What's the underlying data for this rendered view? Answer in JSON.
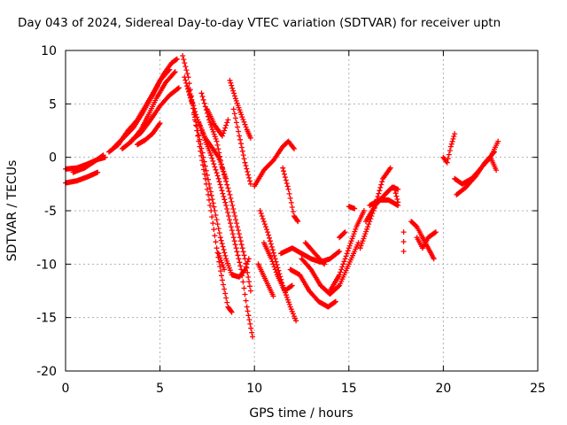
{
  "chart_data": {
    "type": "scatter",
    "title": "Day 043 of 2024, Sidereal Day-to-day VTEC variation (SDTVAR) for receiver uptn",
    "xlabel": "GPS time / hours",
    "ylabel": "SDTVAR / TECUs",
    "xlim": [
      0,
      25
    ],
    "ylim": [
      -20,
      10
    ],
    "xticks": [
      "0",
      "5",
      "10",
      "15",
      "20",
      "25"
    ],
    "yticks": [
      "10",
      "5",
      "0",
      "-5",
      "-10",
      "-15",
      "-20"
    ],
    "grid": true,
    "marker": "+",
    "color": "#ff0000",
    "tracks": [
      [
        [
          0.0,
          -1.1
        ],
        [
          0.6,
          -1.0
        ],
        [
          1.2,
          -0.6
        ],
        [
          1.7,
          -0.2
        ],
        [
          2.1,
          0.0
        ]
      ],
      [
        [
          0.0,
          -2.4
        ],
        [
          0.6,
          -2.2
        ],
        [
          1.2,
          -1.8
        ],
        [
          1.7,
          -1.4
        ]
      ],
      [
        [
          0.4,
          -1.4
        ],
        [
          1.0,
          -1.0
        ],
        [
          1.6,
          -0.3
        ],
        [
          2.0,
          0.2
        ]
      ],
      [
        [
          2.3,
          0.5
        ],
        [
          2.8,
          1.2
        ],
        [
          3.3,
          2.5
        ],
        [
          3.8,
          3.5
        ],
        [
          4.3,
          5.0
        ],
        [
          4.8,
          6.5
        ],
        [
          5.2,
          7.8
        ],
        [
          5.6,
          8.8
        ],
        [
          5.9,
          9.2
        ]
      ],
      [
        [
          2.6,
          1.0
        ],
        [
          3.0,
          1.7
        ],
        [
          3.6,
          2.8
        ],
        [
          4.1,
          4.2
        ],
        [
          4.6,
          5.8
        ],
        [
          5.0,
          7.2
        ],
        [
          5.5,
          8.2
        ]
      ],
      [
        [
          3.0,
          0.8
        ],
        [
          3.5,
          1.5
        ],
        [
          4.0,
          2.6
        ],
        [
          4.4,
          4.0
        ],
        [
          4.8,
          5.5
        ],
        [
          5.3,
          7.0
        ],
        [
          5.8,
          8.0
        ]
      ],
      [
        [
          3.5,
          1.6
        ],
        [
          4.0,
          2.3
        ],
        [
          4.5,
          3.5
        ],
        [
          5.0,
          4.8
        ],
        [
          5.5,
          5.8
        ],
        [
          6.0,
          6.5
        ]
      ],
      [
        [
          3.8,
          1.2
        ],
        [
          4.2,
          1.6
        ],
        [
          4.6,
          2.2
        ],
        [
          5.0,
          3.2
        ]
      ],
      [
        [
          6.2,
          9.5
        ],
        [
          6.5,
          7.5
        ],
        [
          6.8,
          4.0
        ],
        [
          7.1,
          1.0
        ],
        [
          7.4,
          -2.0
        ],
        [
          7.7,
          -5.0
        ],
        [
          8.0,
          -8.5
        ],
        [
          8.3,
          -11.5
        ],
        [
          8.6,
          -14.0
        ],
        [
          8.8,
          -14.5
        ]
      ],
      [
        [
          6.3,
          7.5
        ],
        [
          6.7,
          5.0
        ],
        [
          7.0,
          2.5
        ],
        [
          7.3,
          0.0
        ],
        [
          7.6,
          -2.5
        ],
        [
          7.9,
          -5.0
        ],
        [
          8.2,
          -7.5
        ],
        [
          8.5,
          -9.5
        ],
        [
          8.8,
          -11.0
        ],
        [
          9.2,
          -11.2
        ],
        [
          9.5,
          -10.5
        ],
        [
          9.7,
          -9.5
        ]
      ],
      [
        [
          6.5,
          6.5
        ],
        [
          6.9,
          4.0
        ],
        [
          7.3,
          2.0
        ],
        [
          7.7,
          0.2
        ],
        [
          8.1,
          -2.0
        ],
        [
          8.5,
          -4.5
        ],
        [
          8.9,
          -7.5
        ],
        [
          9.3,
          -10.5
        ],
        [
          9.6,
          -14.0
        ],
        [
          9.9,
          -16.8
        ]
      ],
      [
        [
          7.2,
          6.0
        ],
        [
          7.6,
          3.5
        ],
        [
          8.0,
          1.5
        ],
        [
          8.3,
          -1.0
        ],
        [
          8.7,
          -3.5
        ],
        [
          9.1,
          -6.5
        ],
        [
          9.5,
          -9.5
        ],
        [
          9.8,
          -12.5
        ]
      ],
      [
        [
          7.0,
          3.5
        ],
        [
          7.4,
          1.8
        ],
        [
          7.8,
          0.8
        ],
        [
          8.1,
          0.0
        ],
        [
          8.5,
          -2.0
        ]
      ],
      [
        [
          7.5,
          4.5
        ],
        [
          7.9,
          3.0
        ],
        [
          8.3,
          2.0
        ],
        [
          8.6,
          3.5
        ]
      ],
      [
        [
          8.1,
          -9.0
        ],
        [
          8.4,
          -10.5
        ]
      ],
      [
        [
          8.7,
          7.2
        ],
        [
          9.0,
          5.5
        ],
        [
          9.3,
          4.0
        ],
        [
          9.6,
          2.6
        ],
        [
          9.8,
          1.8
        ]
      ],
      [
        [
          8.9,
          4.5
        ],
        [
          9.2,
          2.0
        ],
        [
          9.5,
          -0.5
        ],
        [
          9.8,
          -2.5
        ]
      ],
      [
        [
          10.0,
          -2.7
        ],
        [
          10.5,
          -1.2
        ],
        [
          11.0,
          -0.3
        ],
        [
          11.5,
          1.0
        ],
        [
          11.8,
          1.5
        ],
        [
          12.1,
          0.8
        ]
      ],
      [
        [
          10.3,
          -5.0
        ],
        [
          10.7,
          -7.0
        ],
        [
          11.1,
          -9.5
        ],
        [
          11.5,
          -12.0
        ],
        [
          11.9,
          -14.0
        ],
        [
          12.2,
          -15.3
        ]
      ],
      [
        [
          10.5,
          -8.0
        ],
        [
          10.9,
          -9.5
        ],
        [
          11.2,
          -11.0
        ],
        [
          11.6,
          -12.5
        ],
        [
          12.0,
          -12.0
        ]
      ],
      [
        [
          10.2,
          -10.0
        ],
        [
          10.6,
          -11.5
        ],
        [
          11.0,
          -13.0
        ]
      ],
      [
        [
          11.5,
          -1.0
        ],
        [
          11.8,
          -3.0
        ],
        [
          12.1,
          -5.5
        ],
        [
          12.3,
          -6.0
        ]
      ],
      [
        [
          11.4,
          -9.0
        ],
        [
          12.0,
          -8.5
        ],
        [
          12.5,
          -9.0
        ],
        [
          13.0,
          -9.5
        ],
        [
          13.5,
          -9.8
        ],
        [
          14.0,
          -9.5
        ],
        [
          14.5,
          -8.8
        ]
      ],
      [
        [
          11.9,
          -10.5
        ],
        [
          12.4,
          -11.0
        ],
        [
          12.9,
          -12.5
        ],
        [
          13.4,
          -13.5
        ],
        [
          13.9,
          -14.0
        ],
        [
          14.3,
          -13.5
        ]
      ],
      [
        [
          12.5,
          -9.5
        ],
        [
          13.0,
          -10.5
        ],
        [
          13.5,
          -12.0
        ],
        [
          14.0,
          -12.8
        ],
        [
          14.5,
          -12.0
        ],
        [
          15.0,
          -10.0
        ],
        [
          15.5,
          -8.0
        ]
      ],
      [
        [
          12.7,
          -8.0
        ],
        [
          13.2,
          -9.0
        ],
        [
          13.7,
          -10.0
        ]
      ],
      [
        [
          14.0,
          -12.5
        ],
        [
          14.5,
          -11.0
        ],
        [
          15.0,
          -8.5
        ],
        [
          15.4,
          -6.5
        ],
        [
          15.8,
          -5.0
        ]
      ],
      [
        [
          14.5,
          -7.5
        ],
        [
          14.8,
          -7.0
        ]
      ],
      [
        [
          15.0,
          -4.6
        ],
        [
          15.3,
          -4.8
        ]
      ],
      [
        [
          15.6,
          -8.5
        ],
        [
          16.0,
          -6.5
        ],
        [
          16.4,
          -4.5
        ],
        [
          16.8,
          -2.0
        ],
        [
          17.2,
          -1.0
        ]
      ],
      [
        [
          15.9,
          -6.0
        ],
        [
          16.4,
          -4.5
        ],
        [
          16.9,
          -3.5
        ],
        [
          17.3,
          -2.8
        ],
        [
          17.6,
          -3.0
        ]
      ],
      [
        [
          16.1,
          -4.5
        ],
        [
          16.6,
          -4.0
        ],
        [
          17.1,
          -4.0
        ],
        [
          17.6,
          -4.5
        ]
      ],
      [
        [
          17.4,
          -2.8
        ],
        [
          17.6,
          -4.2
        ]
      ],
      [
        [
          17.9,
          -7.0
        ],
        [
          17.9,
          -8.8
        ]
      ],
      [
        [
          18.3,
          -6.0
        ],
        [
          18.6,
          -6.5
        ],
        [
          18.9,
          -7.5
        ],
        [
          19.2,
          -8.5
        ],
        [
          19.5,
          -9.5
        ]
      ],
      [
        [
          18.6,
          -7.5
        ],
        [
          18.9,
          -8.5
        ],
        [
          19.2,
          -7.5
        ],
        [
          19.6,
          -7.0
        ]
      ],
      [
        [
          20.0,
          0.0
        ],
        [
          20.2,
          -0.5
        ],
        [
          20.4,
          1.0
        ],
        [
          20.6,
          2.2
        ]
      ],
      [
        [
          20.6,
          -2.0
        ],
        [
          21.0,
          -2.5
        ],
        [
          21.5,
          -2.0
        ],
        [
          22.0,
          -1.0
        ],
        [
          22.5,
          0.0
        ],
        [
          22.9,
          1.5
        ]
      ],
      [
        [
          20.7,
          -3.5
        ],
        [
          21.2,
          -2.8
        ],
        [
          21.7,
          -1.8
        ],
        [
          22.2,
          -0.5
        ],
        [
          22.7,
          0.5
        ]
      ],
      [
        [
          22.5,
          0.0
        ],
        [
          22.8,
          -1.2
        ]
      ]
    ]
  }
}
